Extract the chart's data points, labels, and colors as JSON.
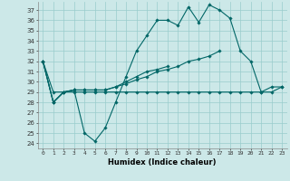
{
  "xlabel": "Humidex (Indice chaleur)",
  "bg_color": "#cce8e8",
  "grid_color": "#99cccc",
  "line_color": "#006666",
  "xlim": [
    -0.5,
    23.5
  ],
  "ylim": [
    23.5,
    37.8
  ],
  "yticks": [
    24,
    25,
    26,
    27,
    28,
    29,
    30,
    31,
    32,
    33,
    34,
    35,
    36,
    37
  ],
  "xticks": [
    0,
    1,
    2,
    3,
    4,
    5,
    6,
    7,
    8,
    9,
    10,
    11,
    12,
    13,
    14,
    15,
    16,
    17,
    18,
    19,
    20,
    21,
    22,
    23
  ],
  "series": [
    [
      32,
      28,
      29,
      29.2,
      25,
      24.2,
      25.5,
      28,
      30.5,
      33,
      34.5,
      36,
      36,
      35.5,
      37.3,
      35.8,
      37.5,
      37,
      36.2,
      33,
      32,
      29,
      29.5,
      29.5
    ],
    [
      32,
      28,
      29,
      29.2,
      29.2,
      29.2,
      29.2,
      29.5,
      29.8,
      30.2,
      30.5,
      31,
      31.2,
      31.5,
      32,
      32.2,
      32.5,
      33,
      null,
      null,
      null,
      null,
      null,
      null
    ],
    [
      32,
      28,
      29,
      29.2,
      29.2,
      29.2,
      29.2,
      29.5,
      30,
      30.5,
      31,
      31.2,
      31.5,
      null,
      null,
      null,
      null,
      null,
      null,
      null,
      null,
      null,
      null,
      null
    ],
    [
      32,
      29,
      29,
      29,
      29,
      29,
      29,
      29,
      29,
      29,
      29,
      29,
      29,
      29,
      29,
      29,
      29,
      29,
      29,
      29,
      29,
      29,
      29,
      29.5
    ]
  ]
}
